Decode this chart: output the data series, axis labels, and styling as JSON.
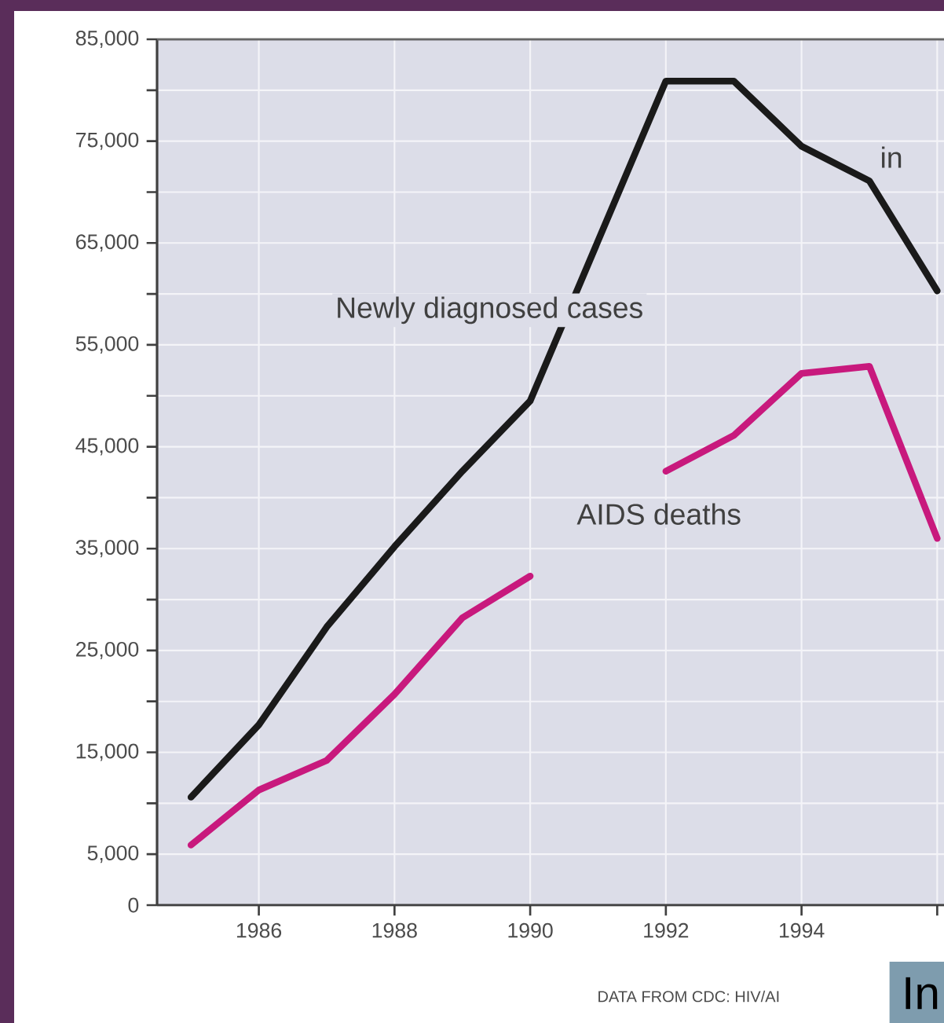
{
  "chart_data": {
    "type": "line",
    "x": [
      1985,
      1986,
      1987,
      1988,
      1989,
      1990,
      1991,
      1992,
      1993,
      1994,
      1995,
      1996
    ],
    "series": [
      {
        "name": "Newly diagnosed cases",
        "color": "#1a1a1a",
        "values": [
          10600,
          17700,
          27300,
          35200,
          42600,
          49500,
          65200,
          80900,
          80900,
          74500,
          71100,
          60300
        ]
      },
      {
        "name": "AIDS deaths",
        "color": "#c8197d",
        "values": [
          5900,
          11300,
          14200,
          20700,
          28200,
          32300,
          null,
          42600,
          46100,
          52200,
          52900,
          36000
        ]
      }
    ],
    "xlim": [
      1984.5,
      1996.1
    ],
    "ylim": [
      0,
      85000
    ],
    "xticks": [
      1986,
      1988,
      1990,
      1992,
      1994,
      {
        "value": 1996,
        "label": null
      }
    ],
    "yticks": [
      {
        "value": 0,
        "label": "0"
      },
      {
        "value": 5000,
        "label": "5,000"
      },
      {
        "value": 10000,
        "label": null
      },
      {
        "value": 15000,
        "label": "15,000"
      },
      {
        "value": 20000,
        "label": null
      },
      {
        "value": 25000,
        "label": "25,000"
      },
      {
        "value": 30000,
        "label": null
      },
      {
        "value": 35000,
        "label": "35,000"
      },
      {
        "value": 40000,
        "label": null
      },
      {
        "value": 45000,
        "label": "45,000"
      },
      {
        "value": 50000,
        "label": null
      },
      {
        "value": 55000,
        "label": "55,000"
      },
      {
        "value": 60000,
        "label": null
      },
      {
        "value": 65000,
        "label": "65,000"
      },
      {
        "value": 70000,
        "label": null
      },
      {
        "value": 75000,
        "label": "75,000"
      },
      {
        "value": 80000,
        "label": null
      },
      {
        "value": 85000,
        "label": "85,000"
      }
    ],
    "grid": true,
    "line_style": "solid",
    "marker": "none",
    "annotations": [
      "in",
      "DATA FROM CDC: HIV/AI",
      "In"
    ]
  }
}
